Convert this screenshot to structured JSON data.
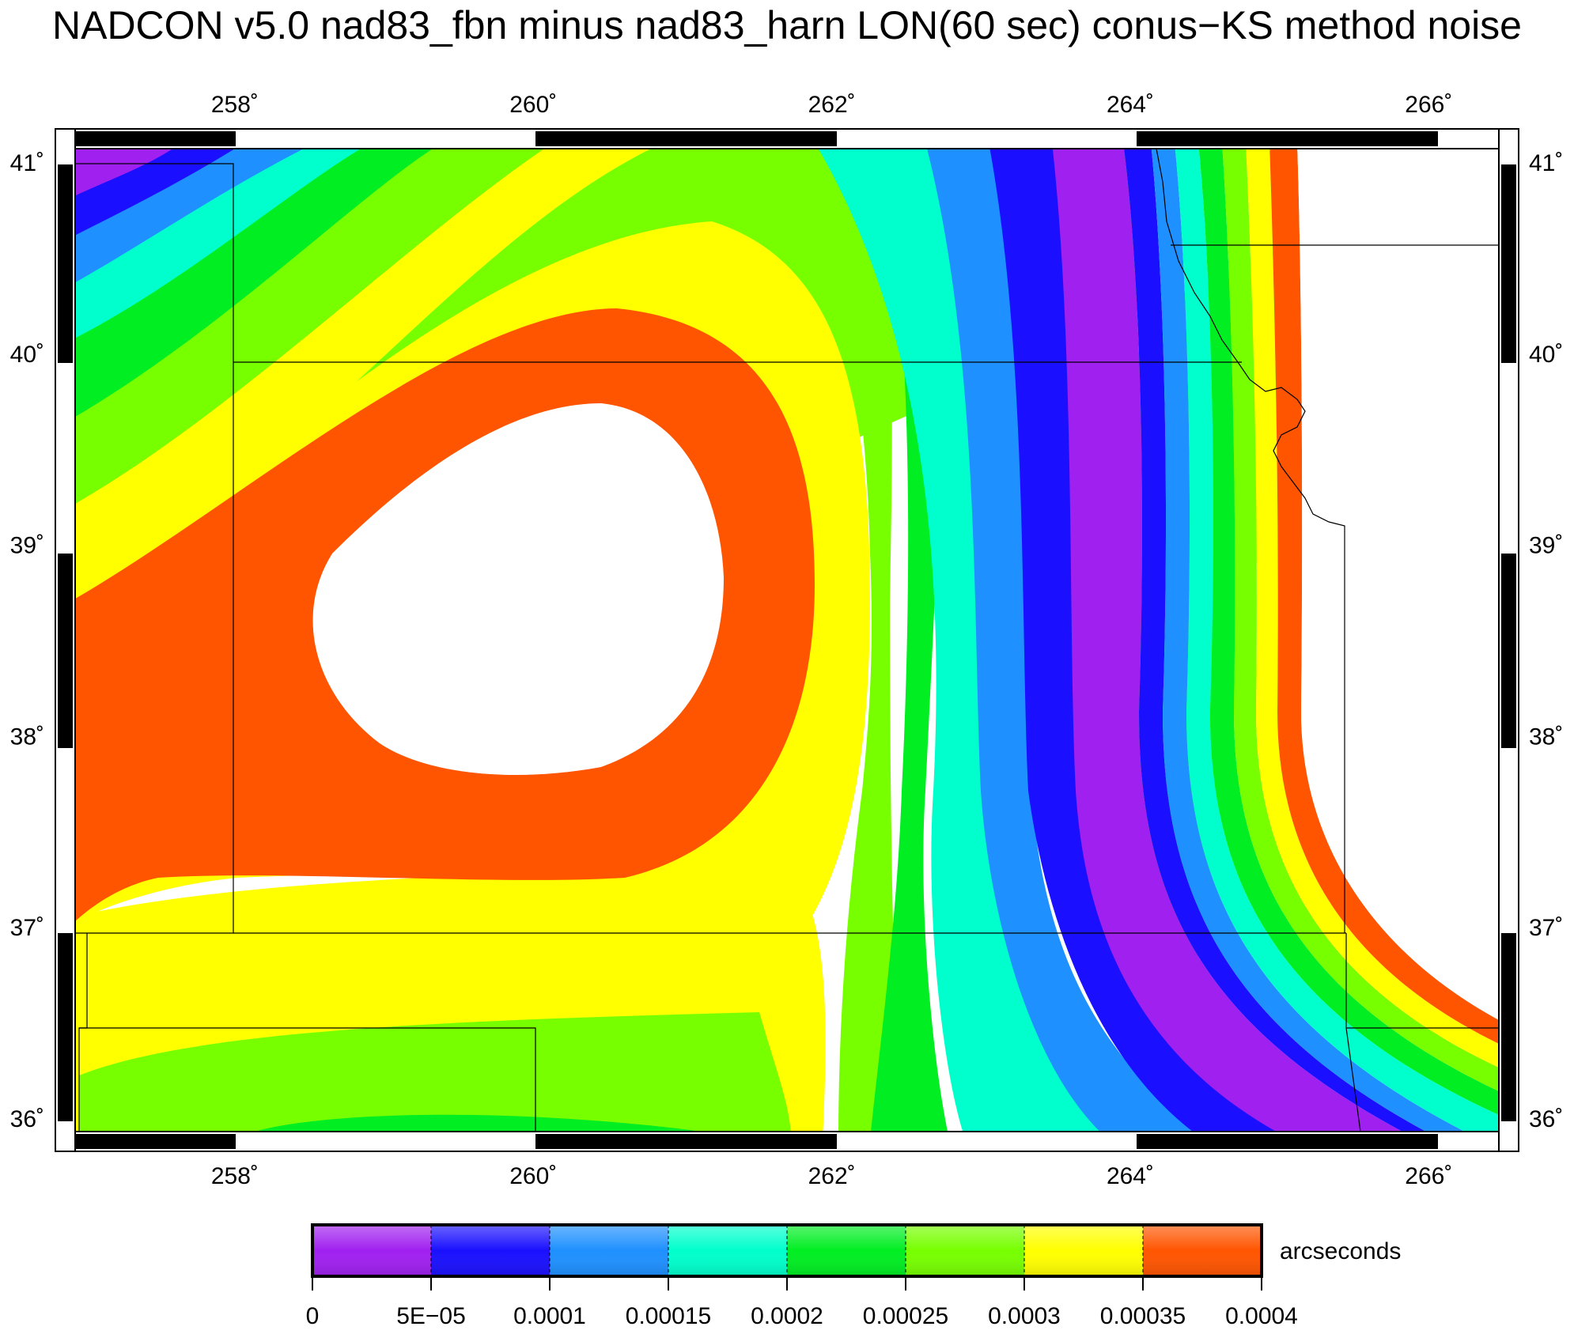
{
  "title": "NADCON v5.0 nad83_fbn minus nad83_harn LON(60 sec) conus−KS method noise",
  "axes": {
    "lon_labels": [
      "258˚",
      "260˚",
      "262˚",
      "264˚",
      "266˚"
    ],
    "lat_labels": [
      "36˚",
      "37˚",
      "38˚",
      "39˚",
      "40˚",
      "41˚"
    ]
  },
  "colorbar": {
    "unit": "arcseconds",
    "tick_labels": [
      "0",
      "5E−05",
      "0.0001",
      "0.00015",
      "0.0002",
      "0.00025",
      "0.0003",
      "0.00035",
      "0.0004"
    ],
    "colors": [
      "#a020f0",
      "#1a10ff",
      "#1e90ff",
      "#00ffcc",
      "#00ee22",
      "#77ff00",
      "#ffff00",
      "#ff5500"
    ]
  },
  "chart_data": {
    "type": "heatmap",
    "title": "NADCON v5.0 nad83_fbn minus nad83_harn LON(60 sec) conus−KS method noise",
    "xlim": [
      256.93,
      266.47
    ],
    "ylim": [
      35.93,
      41.07
    ],
    "x_ticks": [
      258,
      260,
      262,
      264,
      266
    ],
    "y_ticks": [
      36,
      37,
      38,
      39,
      40,
      41
    ],
    "levels": [
      0,
      5e-05,
      0.0001,
      0.00015,
      0.0002,
      0.00025,
      0.0003,
      0.00035,
      0.0004
    ],
    "unit": "arcseconds",
    "notes_visible": "values above 0.0004 shown as white"
  }
}
